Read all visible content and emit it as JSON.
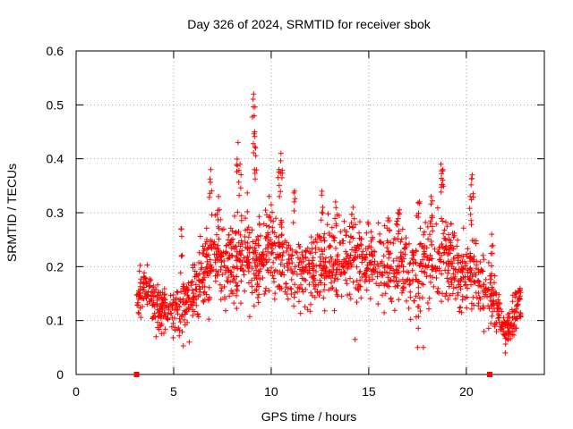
{
  "chart_data": {
    "type": "scatter",
    "title": "Day 326 of 2024, SRMTID for receiver sbok",
    "xlabel": "GPS time / hours",
    "ylabel": "SRMTID / TECUs",
    "xlim": [
      0,
      24
    ],
    "ylim": [
      0,
      0.6
    ],
    "xticks": [
      0,
      5,
      10,
      15,
      20
    ],
    "xtick_labels": [
      "0",
      "5",
      "10",
      "15",
      "20"
    ],
    "yticks": [
      0,
      0.1,
      0.2,
      0.3,
      0.4,
      0.5,
      0.6
    ],
    "ytick_labels": [
      "0",
      "0.1",
      "0.2",
      "0.3",
      "0.4",
      "0.5",
      "0.6"
    ],
    "grid": true,
    "marker": "+",
    "color": "#ff0000",
    "series": [
      {
        "name": "SRMTID",
        "profile": [
          [
            3.1,
            0.15,
            0.03
          ],
          [
            3.5,
            0.16,
            0.03
          ],
          [
            4.0,
            0.13,
            0.03
          ],
          [
            4.5,
            0.12,
            0.03
          ],
          [
            5.0,
            0.12,
            0.04
          ],
          [
            5.5,
            0.13,
            0.04
          ],
          [
            6.0,
            0.15,
            0.04
          ],
          [
            6.5,
            0.18,
            0.05
          ],
          [
            7.0,
            0.22,
            0.06
          ],
          [
            7.5,
            0.21,
            0.05
          ],
          [
            8.0,
            0.21,
            0.05
          ],
          [
            8.5,
            0.22,
            0.06
          ],
          [
            9.0,
            0.21,
            0.06
          ],
          [
            9.5,
            0.22,
            0.06
          ],
          [
            10.0,
            0.24,
            0.06
          ],
          [
            10.5,
            0.22,
            0.06
          ],
          [
            11.0,
            0.2,
            0.05
          ],
          [
            11.5,
            0.19,
            0.05
          ],
          [
            12.0,
            0.18,
            0.05
          ],
          [
            12.5,
            0.2,
            0.05
          ],
          [
            13.0,
            0.2,
            0.05
          ],
          [
            13.5,
            0.21,
            0.05
          ],
          [
            14.0,
            0.22,
            0.05
          ],
          [
            14.5,
            0.21,
            0.05
          ],
          [
            15.0,
            0.21,
            0.05
          ],
          [
            15.5,
            0.21,
            0.05
          ],
          [
            16.0,
            0.2,
            0.05
          ],
          [
            16.5,
            0.21,
            0.05
          ],
          [
            17.0,
            0.19,
            0.05
          ],
          [
            17.5,
            0.18,
            0.06
          ],
          [
            18.0,
            0.22,
            0.06
          ],
          [
            18.5,
            0.22,
            0.06
          ],
          [
            19.0,
            0.22,
            0.06
          ],
          [
            19.5,
            0.2,
            0.05
          ],
          [
            20.0,
            0.18,
            0.05
          ],
          [
            20.5,
            0.19,
            0.05
          ],
          [
            21.0,
            0.16,
            0.05
          ],
          [
            21.5,
            0.13,
            0.04
          ],
          [
            22.0,
            0.08,
            0.02
          ],
          [
            22.5,
            0.11,
            0.03
          ],
          [
            22.8,
            0.14,
            0.04
          ]
        ],
        "peaks": [
          [
            6.9,
            0.38
          ],
          [
            7.3,
            0.33
          ],
          [
            8.3,
            0.43
          ],
          [
            8.4,
            0.39
          ],
          [
            9.1,
            0.52
          ],
          [
            9.15,
            0.45
          ],
          [
            9.2,
            0.42
          ],
          [
            10.5,
            0.41
          ],
          [
            10.4,
            0.38
          ],
          [
            11.2,
            0.34
          ],
          [
            12.6,
            0.34
          ],
          [
            13.3,
            0.32
          ],
          [
            14.2,
            0.31
          ],
          [
            16.0,
            0.29
          ],
          [
            16.5,
            0.3
          ],
          [
            17.6,
            0.32
          ],
          [
            18.2,
            0.33
          ],
          [
            18.7,
            0.39
          ],
          [
            18.8,
            0.38
          ],
          [
            20.3,
            0.37
          ],
          [
            20.2,
            0.33
          ],
          [
            5.4,
            0.27
          ],
          [
            21.3,
            0.26
          ]
        ],
        "outliers": [
          [
            14.3,
            0.065
          ],
          [
            17.5,
            0.05
          ],
          [
            17.8,
            0.05
          ],
          [
            22.0,
            0.04
          ],
          [
            5.8,
            0.06
          ],
          [
            4.1,
            0.07
          ]
        ]
      }
    ],
    "markers_on_axis": [
      {
        "x": 3.1,
        "y": 0
      },
      {
        "x": 21.2,
        "y": 0
      }
    ]
  }
}
